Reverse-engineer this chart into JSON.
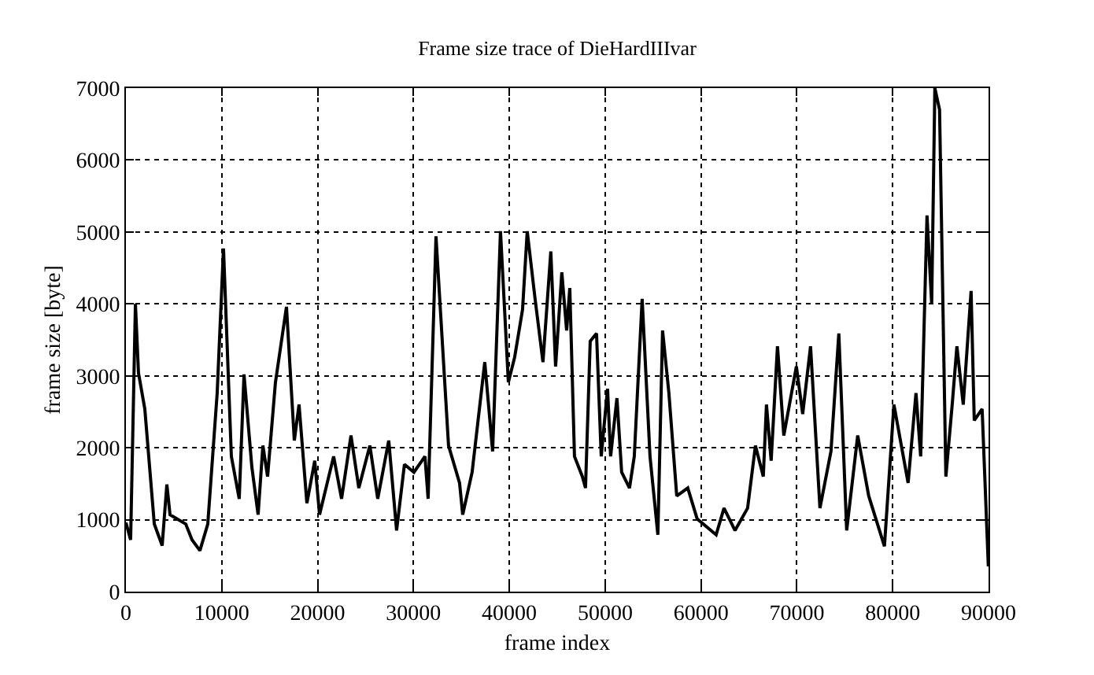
{
  "chart_data": {
    "type": "line",
    "title": "Frame size trace of DieHardIIIvar",
    "xlabel": "frame index",
    "ylabel": "frame size [byte]",
    "xlim": [
      0,
      90000
    ],
    "xticks": [
      0,
      10000,
      20000,
      30000,
      40000,
      50000,
      60000,
      70000,
      80000,
      90000
    ],
    "ylim": [
      0,
      7000
    ],
    "yticks": [
      0,
      1000,
      2000,
      3000,
      4000,
      5000,
      6000,
      7000
    ],
    "grid": true,
    "line_style": "solid",
    "series": [
      {
        "color": "#000000",
        "x": [
          0,
          490,
          990,
          1310,
          1970,
          2960,
          3780,
          4270,
          4600,
          6240,
          6900,
          7720,
          8540,
          9520,
          10180,
          11000,
          11820,
          12320,
          13140,
          13790,
          14290,
          14780,
          15600,
          16750,
          17570,
          18060,
          18880,
          19700,
          20200,
          21670,
          22500,
          23480,
          24300,
          25450,
          26270,
          27420,
          28240,
          29060,
          30050,
          31200,
          31530,
          32350,
          32840,
          33660,
          34810,
          35140,
          36120,
          37440,
          38260,
          39080,
          39900,
          40560,
          41380,
          41870,
          42690,
          43510,
          44330,
          44830,
          45480,
          45980,
          46310,
          46800,
          47620,
          47950,
          48440,
          49100,
          49590,
          50250,
          50570,
          51230,
          51720,
          52540,
          53040,
          53860,
          54680,
          55500,
          55990,
          56650,
          57470,
          58620,
          59600,
          61580,
          62400,
          63550,
          64860,
          65680,
          66500,
          66830,
          67320,
          67980,
          68640,
          69950,
          70610,
          71430,
          72410,
          73560,
          74380,
          75200,
          76350,
          77500,
          79140,
          80130,
          81610,
          82430,
          82920,
          83580,
          84070,
          84400,
          84890,
          85550,
          86210,
          86700,
          87360,
          88180,
          88510,
          89330,
          89980
        ],
        "values": [
          960,
          720,
          4000,
          3040,
          2540,
          940,
          640,
          1490,
          1070,
          940,
          720,
          570,
          940,
          2760,
          4770,
          1880,
          1290,
          3020,
          1730,
          1070,
          2030,
          1600,
          2910,
          3960,
          2100,
          2600,
          1230,
          1820,
          1070,
          1880,
          1290,
          2170,
          1440,
          2030,
          1290,
          2100,
          850,
          1770,
          1660,
          1880,
          1290,
          4940,
          3850,
          2030,
          1510,
          1070,
          1660,
          3190,
          1950,
          5010,
          2910,
          3260,
          3920,
          5010,
          4070,
          3190,
          4730,
          3130,
          4440,
          3630,
          4220,
          1880,
          1600,
          1440,
          3480,
          3590,
          1880,
          2820,
          1880,
          2690,
          1660,
          1440,
          1880,
          4070,
          1880,
          790,
          3630,
          2760,
          1330,
          1440,
          1010,
          790,
          1160,
          850,
          1160,
          2030,
          1600,
          2600,
          1820,
          3410,
          2170,
          3130,
          2470,
          3410,
          1160,
          1950,
          3590,
          850,
          2170,
          1330,
          630,
          2600,
          1510,
          2760,
          1880,
          5230,
          4000,
          7000,
          6700,
          1600,
          2600,
          3410,
          2600,
          4180,
          2380,
          2540,
          350
        ]
      }
    ]
  }
}
